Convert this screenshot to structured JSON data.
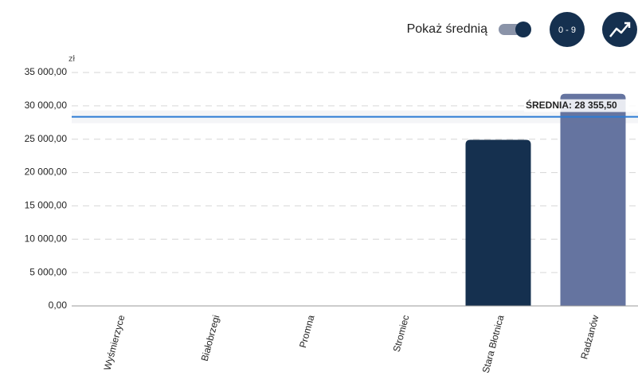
{
  "toolbar": {
    "toggle_label": "Pokaż średnią",
    "range_button": "0 - 9"
  },
  "chart_data": {
    "type": "bar",
    "y_unit": "zł",
    "categories": [
      "Wyśmierzyce",
      "Białobrzegi",
      "Promna",
      "Stromiec",
      "Stara Błotnica",
      "Radzanów"
    ],
    "values": [
      0,
      0,
      0,
      0,
      24900,
      31811
    ],
    "colors": [
      "#15304f",
      "#15304f",
      "#15304f",
      "#15304f",
      "#15304f",
      "#6574a0"
    ],
    "ylim": [
      0,
      35000
    ],
    "yticks": [
      {
        "value": 0,
        "label": "0,00"
      },
      {
        "value": 5000,
        "label": "5 000,00"
      },
      {
        "value": 10000,
        "label": "10 000,00"
      },
      {
        "value": 15000,
        "label": "15 000,00"
      },
      {
        "value": 20000,
        "label": "20 000,00"
      },
      {
        "value": 25000,
        "label": "25 000,00"
      },
      {
        "value": 30000,
        "label": "30 000,00"
      },
      {
        "value": 35000,
        "label": "35 000,00"
      }
    ],
    "average": {
      "value": 28355.5,
      "label": "ŚREDNIA: 28 355,50",
      "color": "#2b7bd4"
    },
    "grid": true
  }
}
